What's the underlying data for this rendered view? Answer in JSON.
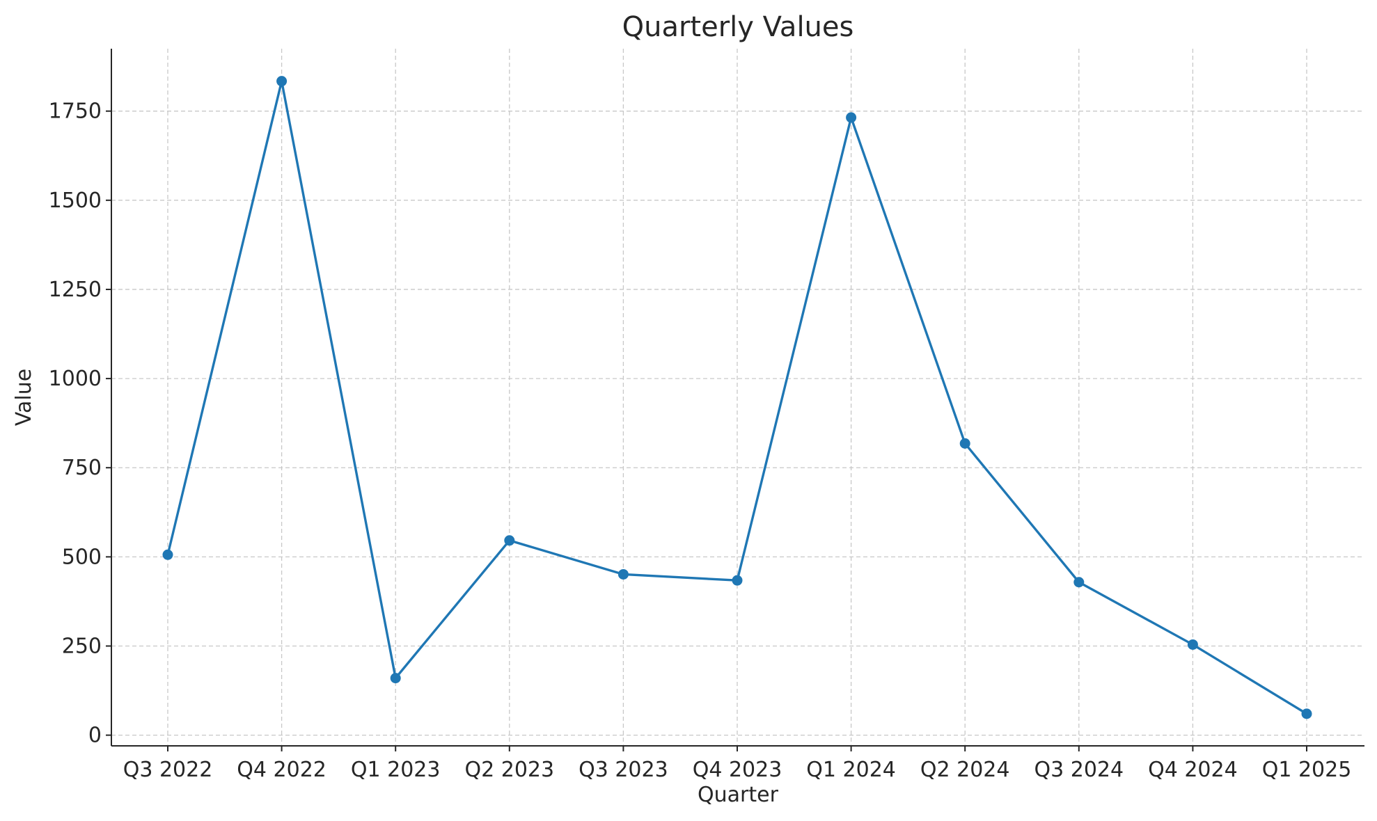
{
  "chart_data": {
    "type": "line",
    "title": "Quarterly Values",
    "xlabel": "Quarter",
    "ylabel": "Value",
    "categories": [
      "Q3 2022",
      "Q4 2022",
      "Q1 2023",
      "Q2 2023",
      "Q3 2023",
      "Q4 2023",
      "Q1 2024",
      "Q2 2024",
      "Q3 2024",
      "Q4 2024",
      "Q1 2025"
    ],
    "series": [
      {
        "values": [
          506,
          1834,
          160,
          546,
          451,
          434,
          1732,
          818,
          429,
          254,
          60
        ],
        "color": "#1f77b4",
        "marker": "circle"
      }
    ],
    "ylim": [
      -30,
      1925
    ],
    "yticks": [
      0,
      250,
      500,
      750,
      1000,
      1250,
      1500,
      1750
    ],
    "ytick_labels": [
      "0",
      "250",
      "500",
      "750",
      "1000",
      "1250",
      "1500",
      "1750"
    ],
    "grid": true,
    "grid_style": "dashed",
    "legend": false
  }
}
